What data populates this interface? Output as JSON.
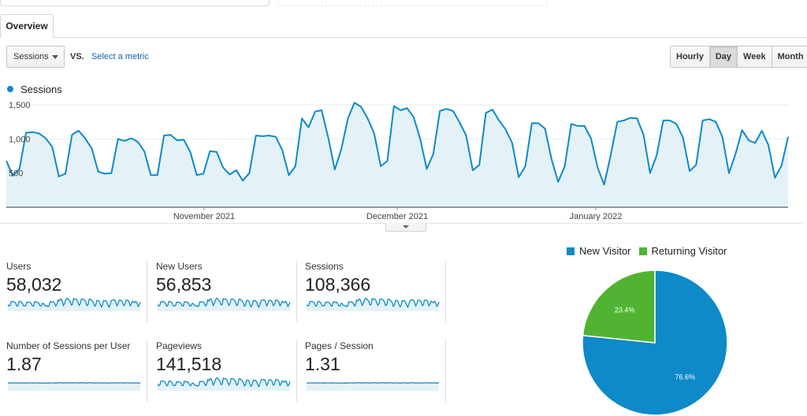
{
  "tabs": [
    {
      "label": "Overview"
    }
  ],
  "controls": {
    "metric_select": "Sessions",
    "vs_label": "VS.",
    "select_metric_link": "Select a metric",
    "granularity": [
      "Hourly",
      "Day",
      "Week",
      "Month"
    ],
    "active_granularity": "Day"
  },
  "colors": {
    "primary": "#0d8ac7",
    "secondary": "#50b432",
    "area_fill": "#e4f2f8"
  },
  "chart_data": [
    {
      "type": "area",
      "legend": "Sessions",
      "x_labels": [
        "November 2021",
        "December 2021",
        "January 2022"
      ],
      "y_ticks": [
        "1,500",
        "1,000",
        "500"
      ],
      "ylim": [
        0,
        1650
      ],
      "grid": true,
      "series": [
        {
          "name": "Sessions",
          "values": [
            680,
            460,
            560,
            1090,
            1100,
            1080,
            1010,
            880,
            450,
            490,
            1060,
            1120,
            1010,
            860,
            520,
            490,
            500,
            1000,
            970,
            1010,
            960,
            820,
            470,
            470,
            1050,
            1060,
            980,
            990,
            810,
            470,
            490,
            820,
            810,
            580,
            480,
            540,
            390,
            500,
            1050,
            1040,
            1050,
            1030,
            840,
            470,
            600,
            1300,
            1170,
            1400,
            1420,
            1020,
            550,
            850,
            1300,
            1530,
            1470,
            1300,
            1080,
            600,
            680,
            1480,
            1420,
            1450,
            1320,
            1000,
            560,
            780,
            1410,
            1440,
            1410,
            1240,
            1050,
            540,
            620,
            1380,
            1430,
            1270,
            1140,
            940,
            440,
            600,
            1230,
            1230,
            1150,
            700,
            370,
            600,
            1220,
            1190,
            1190,
            1010,
            580,
            330,
            760,
            1250,
            1270,
            1310,
            1300,
            1060,
            500,
            760,
            1270,
            1270,
            1220,
            1020,
            530,
            620,
            1270,
            1290,
            1250,
            1030,
            500,
            780,
            1130,
            980,
            940,
            1120,
            910,
            430,
            610,
            1030
          ]
        }
      ]
    },
    {
      "type": "pie",
      "legend": [
        "New Visitor",
        "Returning Visitor"
      ],
      "values": [
        76.6,
        23.4
      ],
      "labels": [
        "76.6%",
        "23.4%"
      ]
    }
  ],
  "metrics": [
    {
      "label": "Users",
      "value": "58,032"
    },
    {
      "label": "New Users",
      "value": "56,853"
    },
    {
      "label": "Sessions",
      "value": "108,366"
    },
    {
      "label": "Number of Sessions per User",
      "value": "1.87"
    },
    {
      "label": "Pageviews",
      "value": "141,518"
    },
    {
      "label": "Pages / Session",
      "value": "1.31"
    }
  ],
  "sparkline_styles": [
    "wavy",
    "wavy",
    "wavy",
    "flat",
    "wavy",
    "flat"
  ]
}
